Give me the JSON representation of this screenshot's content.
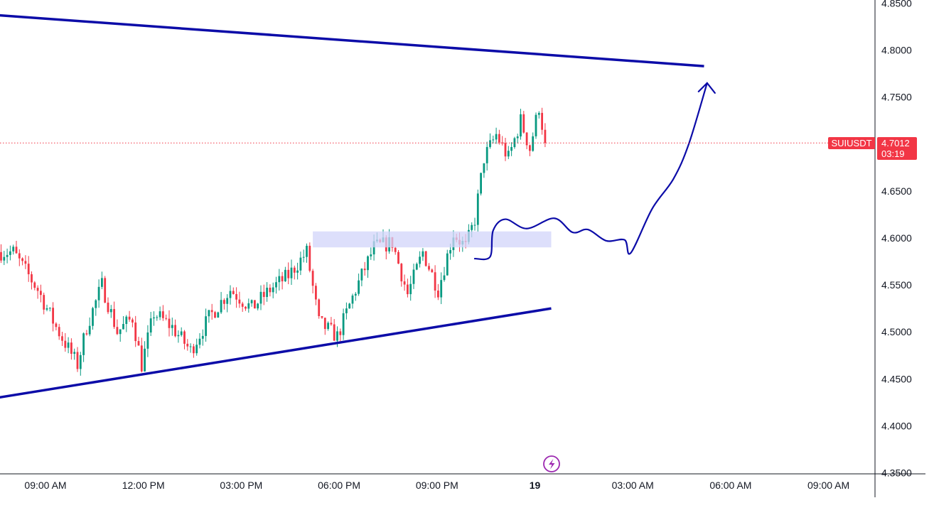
{
  "chart_data": {
    "type": "candlestick",
    "symbol": "SUIUSDT",
    "last_price": "4.7012",
    "countdown": "03:19",
    "price_axis": {
      "min": 4.35,
      "max": 4.85,
      "ticks": [
        "4.8500",
        "4.8000",
        "4.7500",
        "4.7000",
        "4.6500",
        "4.6000",
        "4.5500",
        "4.5000",
        "4.4500",
        "4.4000",
        "4.3500"
      ]
    },
    "time_axis": {
      "ticks": [
        "09:00 AM",
        "12:00 PM",
        "03:00 PM",
        "06:00 PM",
        "09:00 PM",
        "19",
        "03:00 AM",
        "06:00 AM",
        "09:00 AM"
      ]
    },
    "anchors": [
      {
        "t": 0,
        "p": 4.585
      },
      {
        "t": 4,
        "p": 4.585
      },
      {
        "t": 12,
        "p": 4.545
      },
      {
        "t": 18,
        "p": 4.505
      },
      {
        "t": 25,
        "p": 4.465
      },
      {
        "t": 28,
        "p": 4.505
      },
      {
        "t": 33,
        "p": 4.55
      },
      {
        "t": 38,
        "p": 4.5
      },
      {
        "t": 43,
        "p": 4.515
      },
      {
        "t": 46,
        "p": 4.465
      },
      {
        "t": 50,
        "p": 4.52
      },
      {
        "t": 56,
        "p": 4.505
      },
      {
        "t": 62,
        "p": 4.48
      },
      {
        "t": 68,
        "p": 4.515
      },
      {
        "t": 75,
        "p": 4.545
      },
      {
        "t": 82,
        "p": 4.525
      },
      {
        "t": 88,
        "p": 4.545
      },
      {
        "t": 94,
        "p": 4.56
      },
      {
        "t": 100,
        "p": 4.585
      },
      {
        "t": 104,
        "p": 4.51
      },
      {
        "t": 110,
        "p": 4.495
      },
      {
        "t": 116,
        "p": 4.545
      },
      {
        "t": 122,
        "p": 4.59
      },
      {
        "t": 128,
        "p": 4.595
      },
      {
        "t": 133,
        "p": 4.54
      },
      {
        "t": 138,
        "p": 4.585
      },
      {
        "t": 143,
        "p": 4.545
      },
      {
        "t": 148,
        "p": 4.605
      },
      {
        "t": 152,
        "p": 4.59
      },
      {
        "t": 155,
        "p": 4.62
      },
      {
        "t": 158,
        "p": 4.685
      },
      {
        "t": 162,
        "p": 4.71
      },
      {
        "t": 166,
        "p": 4.685
      },
      {
        "t": 170,
        "p": 4.725
      },
      {
        "t": 173,
        "p": 4.695
      },
      {
        "t": 176,
        "p": 4.74
      },
      {
        "t": 178,
        "p": 4.7012
      }
    ],
    "annotations": {
      "support_line": [
        {
          "t": -1,
          "p": 4.43
        },
        {
          "t": 180,
          "p": 4.525
        }
      ],
      "resistance_line": [
        {
          "t": -13,
          "p": 4.84
        },
        {
          "t": 230,
          "p": 4.783
        }
      ],
      "zone": {
        "t0": 102,
        "t1": 180,
        "p0": 4.59,
        "p1": 4.607
      },
      "projection": [
        {
          "t": 155,
          "p": 4.578
        },
        {
          "t": 160,
          "p": 4.58
        },
        {
          "t": 161,
          "p": 4.608
        },
        {
          "t": 165,
          "p": 4.62
        },
        {
          "t": 172,
          "p": 4.61
        },
        {
          "t": 181,
          "p": 4.621
        },
        {
          "t": 187,
          "p": 4.606
        },
        {
          "t": 192,
          "p": 4.609
        },
        {
          "t": 198,
          "p": 4.597
        },
        {
          "t": 204,
          "p": 4.598
        },
        {
          "t": 206,
          "p": 4.584
        },
        {
          "t": 213,
          "p": 4.631
        },
        {
          "t": 220,
          "p": 4.663
        },
        {
          "t": 225,
          "p": 4.7
        },
        {
          "t": 231,
          "p": 4.765
        }
      ]
    }
  }
}
